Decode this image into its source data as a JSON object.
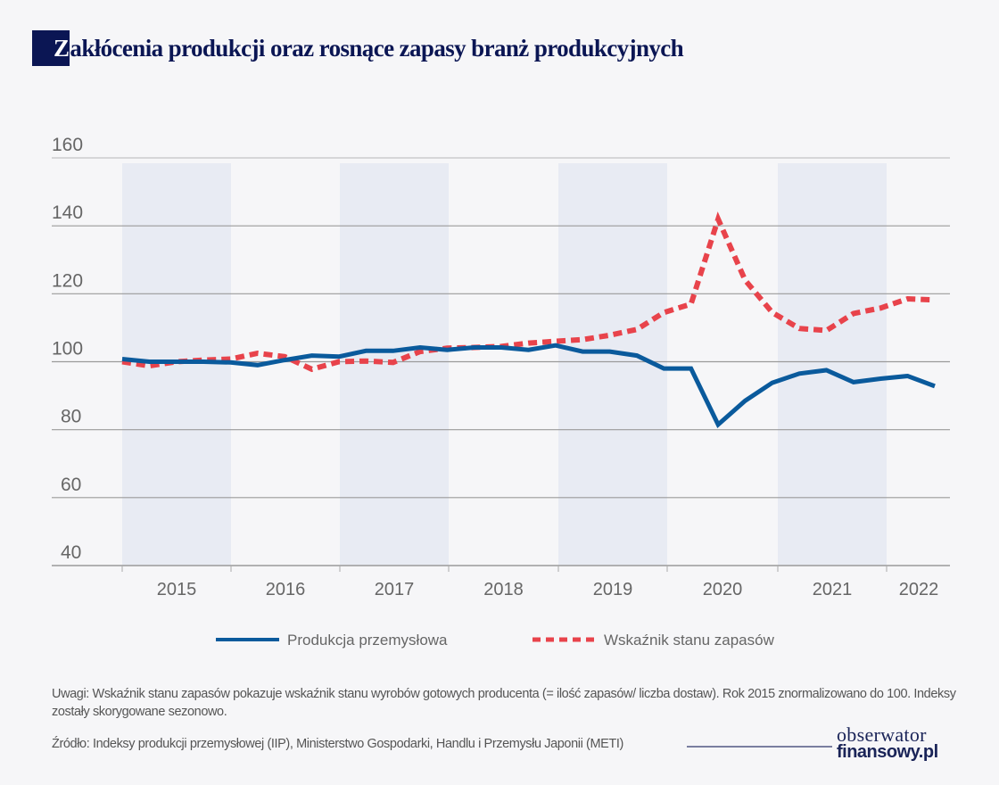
{
  "header": {
    "title_first_letter": "Z",
    "title_rest": "akłócenia produkcji oraz rosnące zapasy branż produkcyjnych"
  },
  "chart_data": {
    "type": "line",
    "title": "Zakłócenia produkcji oraz rosnące zapasy branż produkcyjnych",
    "xlabel": "",
    "ylabel": "",
    "ylim": [
      40,
      160
    ],
    "yticks": [
      160,
      140,
      120,
      100,
      80,
      60,
      40
    ],
    "year_labels": [
      "2015",
      "2016",
      "2017",
      "2018",
      "2019",
      "2020",
      "2021",
      "2022"
    ],
    "frequency": "quarterly",
    "x": [
      "2015Q1",
      "2015Q2",
      "2015Q3",
      "2015Q4",
      "2016Q1",
      "2016Q2",
      "2016Q3",
      "2016Q4",
      "2017Q1",
      "2017Q2",
      "2017Q3",
      "2017Q4",
      "2018Q1",
      "2018Q2",
      "2018Q3",
      "2018Q4",
      "2019Q1",
      "2019Q2",
      "2019Q3",
      "2019Q4",
      "2020Q1",
      "2020Q2",
      "2020Q3",
      "2020Q4",
      "2021Q1",
      "2021Q2",
      "2021Q3",
      "2021Q4",
      "2022Q1",
      "2022Q2",
      "2022Q3"
    ],
    "grid": true,
    "shaded_years": [
      "2015",
      "2017",
      "2019",
      "2021"
    ],
    "legend_position": "bottom",
    "series": [
      {
        "name": "Produkcja przemysłowa",
        "style": "solid",
        "color": "#0a5a9c",
        "values": [
          100.8,
          100.0,
          100.0,
          100.0,
          99.8,
          99.0,
          100.5,
          101.8,
          101.5,
          103.2,
          103.2,
          104.2,
          103.5,
          104.2,
          104.2,
          103.5,
          104.8,
          103.0,
          103.0,
          101.8,
          98.0,
          98.0,
          81.5,
          88.5,
          93.8,
          96.5,
          97.5,
          94.0,
          95.0,
          95.8,
          92.8
        ]
      },
      {
        "name": "Wskaźnik stanu zapasów",
        "style": "dashed",
        "color": "#e8434b",
        "values": [
          100.0,
          98.8,
          100.0,
          100.5,
          100.8,
          102.5,
          101.5,
          97.8,
          100.0,
          100.2,
          99.8,
          103.0,
          104.0,
          104.2,
          104.5,
          105.5,
          106.0,
          106.5,
          107.8,
          109.5,
          114.5,
          117.0,
          142.0,
          124.0,
          114.5,
          109.8,
          109.2,
          114.2,
          115.8,
          118.5,
          118.2
        ]
      }
    ]
  },
  "footer": {
    "note": "Uwagi: Wskaźnik stanu zapasów pokazuje wskaźnik stanu wyrobów gotowych producenta (= ilość zapasów/ liczba dostaw). Rok 2015 znormalizowano do 100. Indeksy zostały skorygowane sezonowo.",
    "source": "Źródło: Indeksy produkcji przemysłowej (IIP), Ministerstwo Gospodarki, Handlu i Przemysłu Japonii (METI)",
    "logo_line1": "obserwator",
    "logo_line2": "finansowy.pl"
  }
}
